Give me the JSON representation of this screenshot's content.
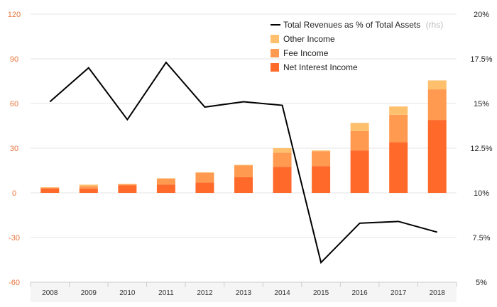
{
  "chart_data": {
    "type": "bar",
    "stacked": true,
    "categories": [
      "2008",
      "2009",
      "2010",
      "2011",
      "2012",
      "2013",
      "2014",
      "2015",
      "2016",
      "2017",
      "2018"
    ],
    "y_left": {
      "ylim": [
        -60,
        120
      ],
      "ticks": [
        120,
        90,
        60,
        30,
        0,
        -30,
        -60
      ],
      "tick_labels": [
        "120",
        "90",
        "60",
        "30",
        "0",
        "-30",
        "-60"
      ]
    },
    "y_right": {
      "ylim": [
        5,
        20
      ],
      "ticks": [
        20,
        17.5,
        15,
        12.5,
        10,
        7.5,
        5
      ],
      "tick_labels": [
        "20%",
        "17.5%",
        "15%",
        "12.5%",
        "10%",
        "7.5%",
        "5%"
      ]
    },
    "series": [
      {
        "name": "Net Interest Income",
        "kind": "bar",
        "axis": "left",
        "color": "#ff6a2b",
        "values": [
          3,
          3,
          5,
          5.5,
          7,
          10.5,
          17.5,
          18,
          28.5,
          34,
          49
        ]
      },
      {
        "name": "Fee Income",
        "kind": "bar",
        "axis": "left",
        "color": "#ff9a50",
        "values": [
          0.5,
          1.5,
          0.7,
          4,
          6.5,
          8,
          9.5,
          10,
          13,
          18.5,
          20.5
        ]
      },
      {
        "name": "Other Income",
        "kind": "bar",
        "axis": "left",
        "color": "#ffc06e",
        "values": [
          0.3,
          1,
          0.3,
          0.3,
          0.3,
          0.3,
          3,
          0.5,
          5.5,
          5.5,
          6
        ]
      },
      {
        "name": "Total Revenues as % of Total Assets",
        "kind": "line",
        "axis": "right",
        "color": "#000000",
        "values": [
          15.1,
          17,
          14.1,
          17.3,
          14.8,
          15.1,
          14.9,
          6.1,
          8.3,
          8.4,
          7.8
        ]
      }
    ],
    "legend": {
      "placement": "top-right",
      "line_label": "Total Revenues as % of Total Assets",
      "line_note": "(rhs)",
      "items": [
        "Other Income",
        "Fee Income",
        "Net Interest Income"
      ]
    },
    "grid": true
  }
}
